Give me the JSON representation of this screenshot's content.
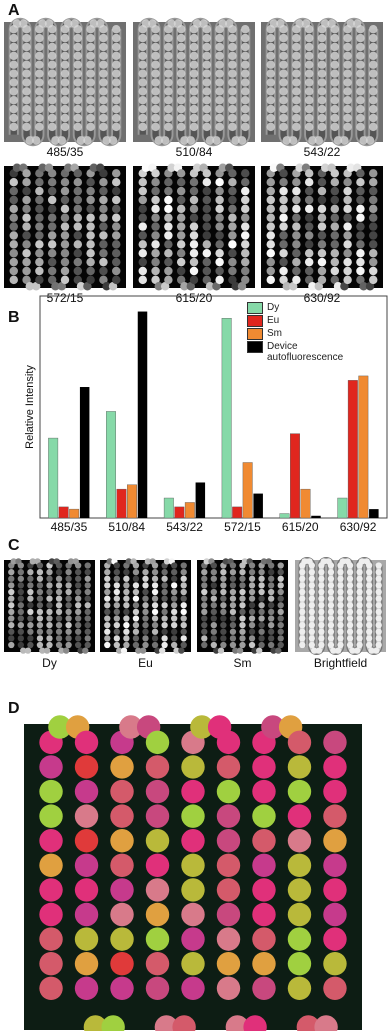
{
  "panels": {
    "a": "A",
    "b": "B",
    "c": "C",
    "d": "D"
  },
  "panel_a": {
    "filters": [
      "485/35",
      "510/84",
      "543/22",
      "572/15",
      "615/20",
      "630/92"
    ]
  },
  "panel_c": {
    "channels": [
      "Dy",
      "Eu",
      "Sm",
      "Brightfield"
    ]
  },
  "chart_data": {
    "type": "bar",
    "y_label": "Relative Intensity",
    "categories": [
      "485/35",
      "510/84",
      "543/22",
      "572/15",
      "615/20",
      "630/92"
    ],
    "series": [
      {
        "name": "Dy",
        "color": "#86d9a8",
        "values": [
          36,
          48,
          9,
          90,
          2,
          9
        ]
      },
      {
        "name": "Eu",
        "color": "#e0261e",
        "values": [
          5,
          13,
          5,
          5,
          38,
          62
        ]
      },
      {
        "name": "Sm",
        "color": "#f08a32",
        "values": [
          4,
          15,
          7,
          25,
          13,
          64
        ]
      },
      {
        "name": "Device autofluorescence",
        "color": "#000000",
        "values": [
          59,
          93,
          16,
          11,
          1,
          4
        ]
      }
    ],
    "ylim": [
      0,
      100
    ],
    "legend": "top-right",
    "grid": false
  }
}
